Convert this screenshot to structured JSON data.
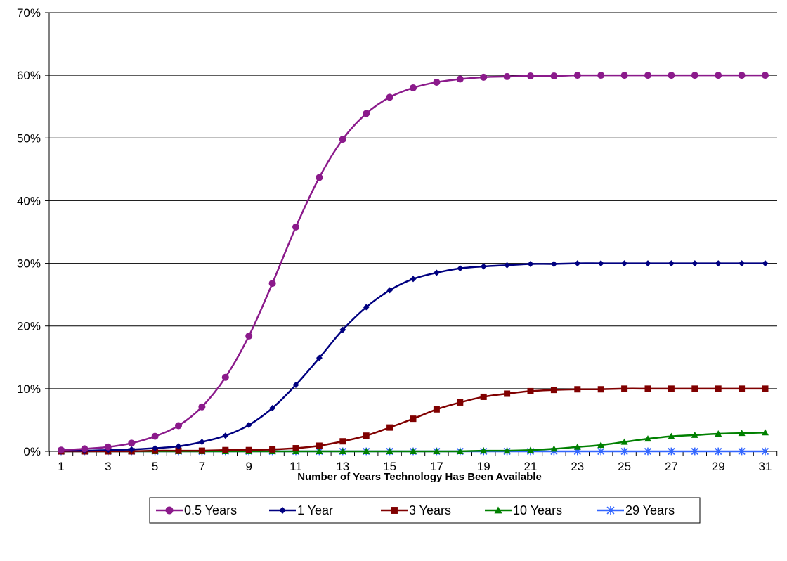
{
  "chart_data": {
    "type": "line",
    "title": "",
    "xlabel": "Number of Years Technology Has Been Available",
    "ylabel": "",
    "x": [
      1,
      2,
      3,
      4,
      5,
      6,
      7,
      8,
      9,
      10,
      11,
      12,
      13,
      14,
      15,
      16,
      17,
      18,
      19,
      20,
      21,
      22,
      23,
      24,
      25,
      26,
      27,
      28,
      29,
      30,
      31
    ],
    "x_tick_labels": [
      "1",
      "3",
      "5",
      "7",
      "9",
      "11",
      "13",
      "15",
      "17",
      "19",
      "21",
      "23",
      "25",
      "27",
      "29",
      "31"
    ],
    "y_tick_labels": [
      "0%",
      "10%",
      "20%",
      "30%",
      "40%",
      "50%",
      "60%",
      "70%"
    ],
    "ylim": [
      0,
      0.7
    ],
    "y_ticks": [
      0,
      0.1,
      0.2,
      0.3,
      0.4,
      0.5,
      0.6,
      0.7
    ],
    "grid": "horizontal",
    "legend_position": "bottom",
    "series": [
      {
        "name": "0.5 Years",
        "color": "#8B1A8B",
        "marker": "circle",
        "values": [
          0.002,
          0.004,
          0.007,
          0.013,
          0.024,
          0.041,
          0.071,
          0.118,
          0.184,
          0.268,
          0.358,
          0.437,
          0.498,
          0.539,
          0.565,
          0.58,
          0.589,
          0.594,
          0.597,
          0.598,
          0.599,
          0.599,
          0.6,
          0.6,
          0.6,
          0.6,
          0.6,
          0.6,
          0.6,
          0.6,
          0.6
        ]
      },
      {
        "name": "1 Year",
        "color": "#000080",
        "marker": "diamond",
        "values": [
          0.001,
          0.001,
          0.002,
          0.003,
          0.005,
          0.008,
          0.015,
          0.025,
          0.042,
          0.069,
          0.106,
          0.149,
          0.194,
          0.23,
          0.257,
          0.275,
          0.285,
          0.292,
          0.295,
          0.297,
          0.299,
          0.299,
          0.3,
          0.3,
          0.3,
          0.3,
          0.3,
          0.3,
          0.3,
          0.3,
          0.3
        ]
      },
      {
        "name": "3 Years",
        "color": "#800000",
        "marker": "square",
        "values": [
          0.0,
          0.0,
          0.0,
          0.0,
          0.001,
          0.001,
          0.001,
          0.002,
          0.002,
          0.003,
          0.005,
          0.009,
          0.016,
          0.025,
          0.038,
          0.052,
          0.067,
          0.078,
          0.087,
          0.092,
          0.096,
          0.098,
          0.099,
          0.099,
          0.1,
          0.1,
          0.1,
          0.1,
          0.1,
          0.1,
          0.1
        ]
      },
      {
        "name": "10 Years",
        "color": "#008000",
        "marker": "triangle",
        "values": [
          0.0,
          0.0,
          0.0,
          0.0,
          0.0,
          0.0,
          0.0,
          0.0,
          0.0,
          0.0,
          0.0,
          0.0,
          0.0,
          0.0,
          0.0,
          0.0,
          0.0,
          0.0,
          0.001,
          0.001,
          0.002,
          0.004,
          0.007,
          0.01,
          0.015,
          0.02,
          0.024,
          0.026,
          0.028,
          0.029,
          0.03
        ]
      },
      {
        "name": "29 Years",
        "color": "#3366FF",
        "marker": "asterisk",
        "values": [
          0.0,
          0.0,
          0.0,
          0.0,
          0.0,
          0.0,
          0.0,
          0.0,
          0.0,
          0.0,
          0.0,
          0.0,
          0.0,
          0.0,
          0.0,
          0.0,
          0.0,
          0.0,
          0.0,
          0.0,
          0.0,
          0.0,
          0.0,
          0.0,
          0.0,
          0.0,
          0.0,
          0.0,
          0.0,
          0.0,
          0.0
        ]
      }
    ]
  }
}
